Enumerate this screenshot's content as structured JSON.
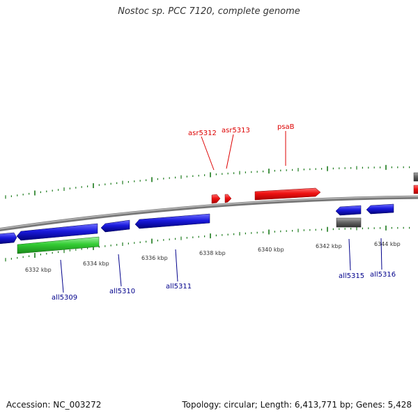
{
  "title": "Nostoc sp. PCC 7120, complete genome",
  "footer": {
    "accession": "Accession: NC_003272",
    "summary": "Topology: circular; Length: 6,413,771 bp; Genes: 5,428"
  },
  "colors": {
    "backbone": "#888888",
    "forward_gene": "#e01010",
    "reverse_gene": "#1a1add",
    "rna_gene": "#33cc33",
    "other_feature": "#666666",
    "tick": "#1a7a1a",
    "forward_label": "#dd0000",
    "reverse_label": "#00008b"
  },
  "scale_labels": [
    "6332 kbp",
    "6334 kbp",
    "6336 kbp",
    "6338 kbp",
    "6340 kbp",
    "6342 kbp",
    "6344 kbp"
  ],
  "labels": {
    "asr5312": "asr5312",
    "asr5313": "asr5313",
    "psaB": "psaB",
    "all5309": "all5309",
    "all5310": "all5310",
    "all5311": "all5311",
    "all5315": "all5315",
    "all5316": "all5316"
  }
}
